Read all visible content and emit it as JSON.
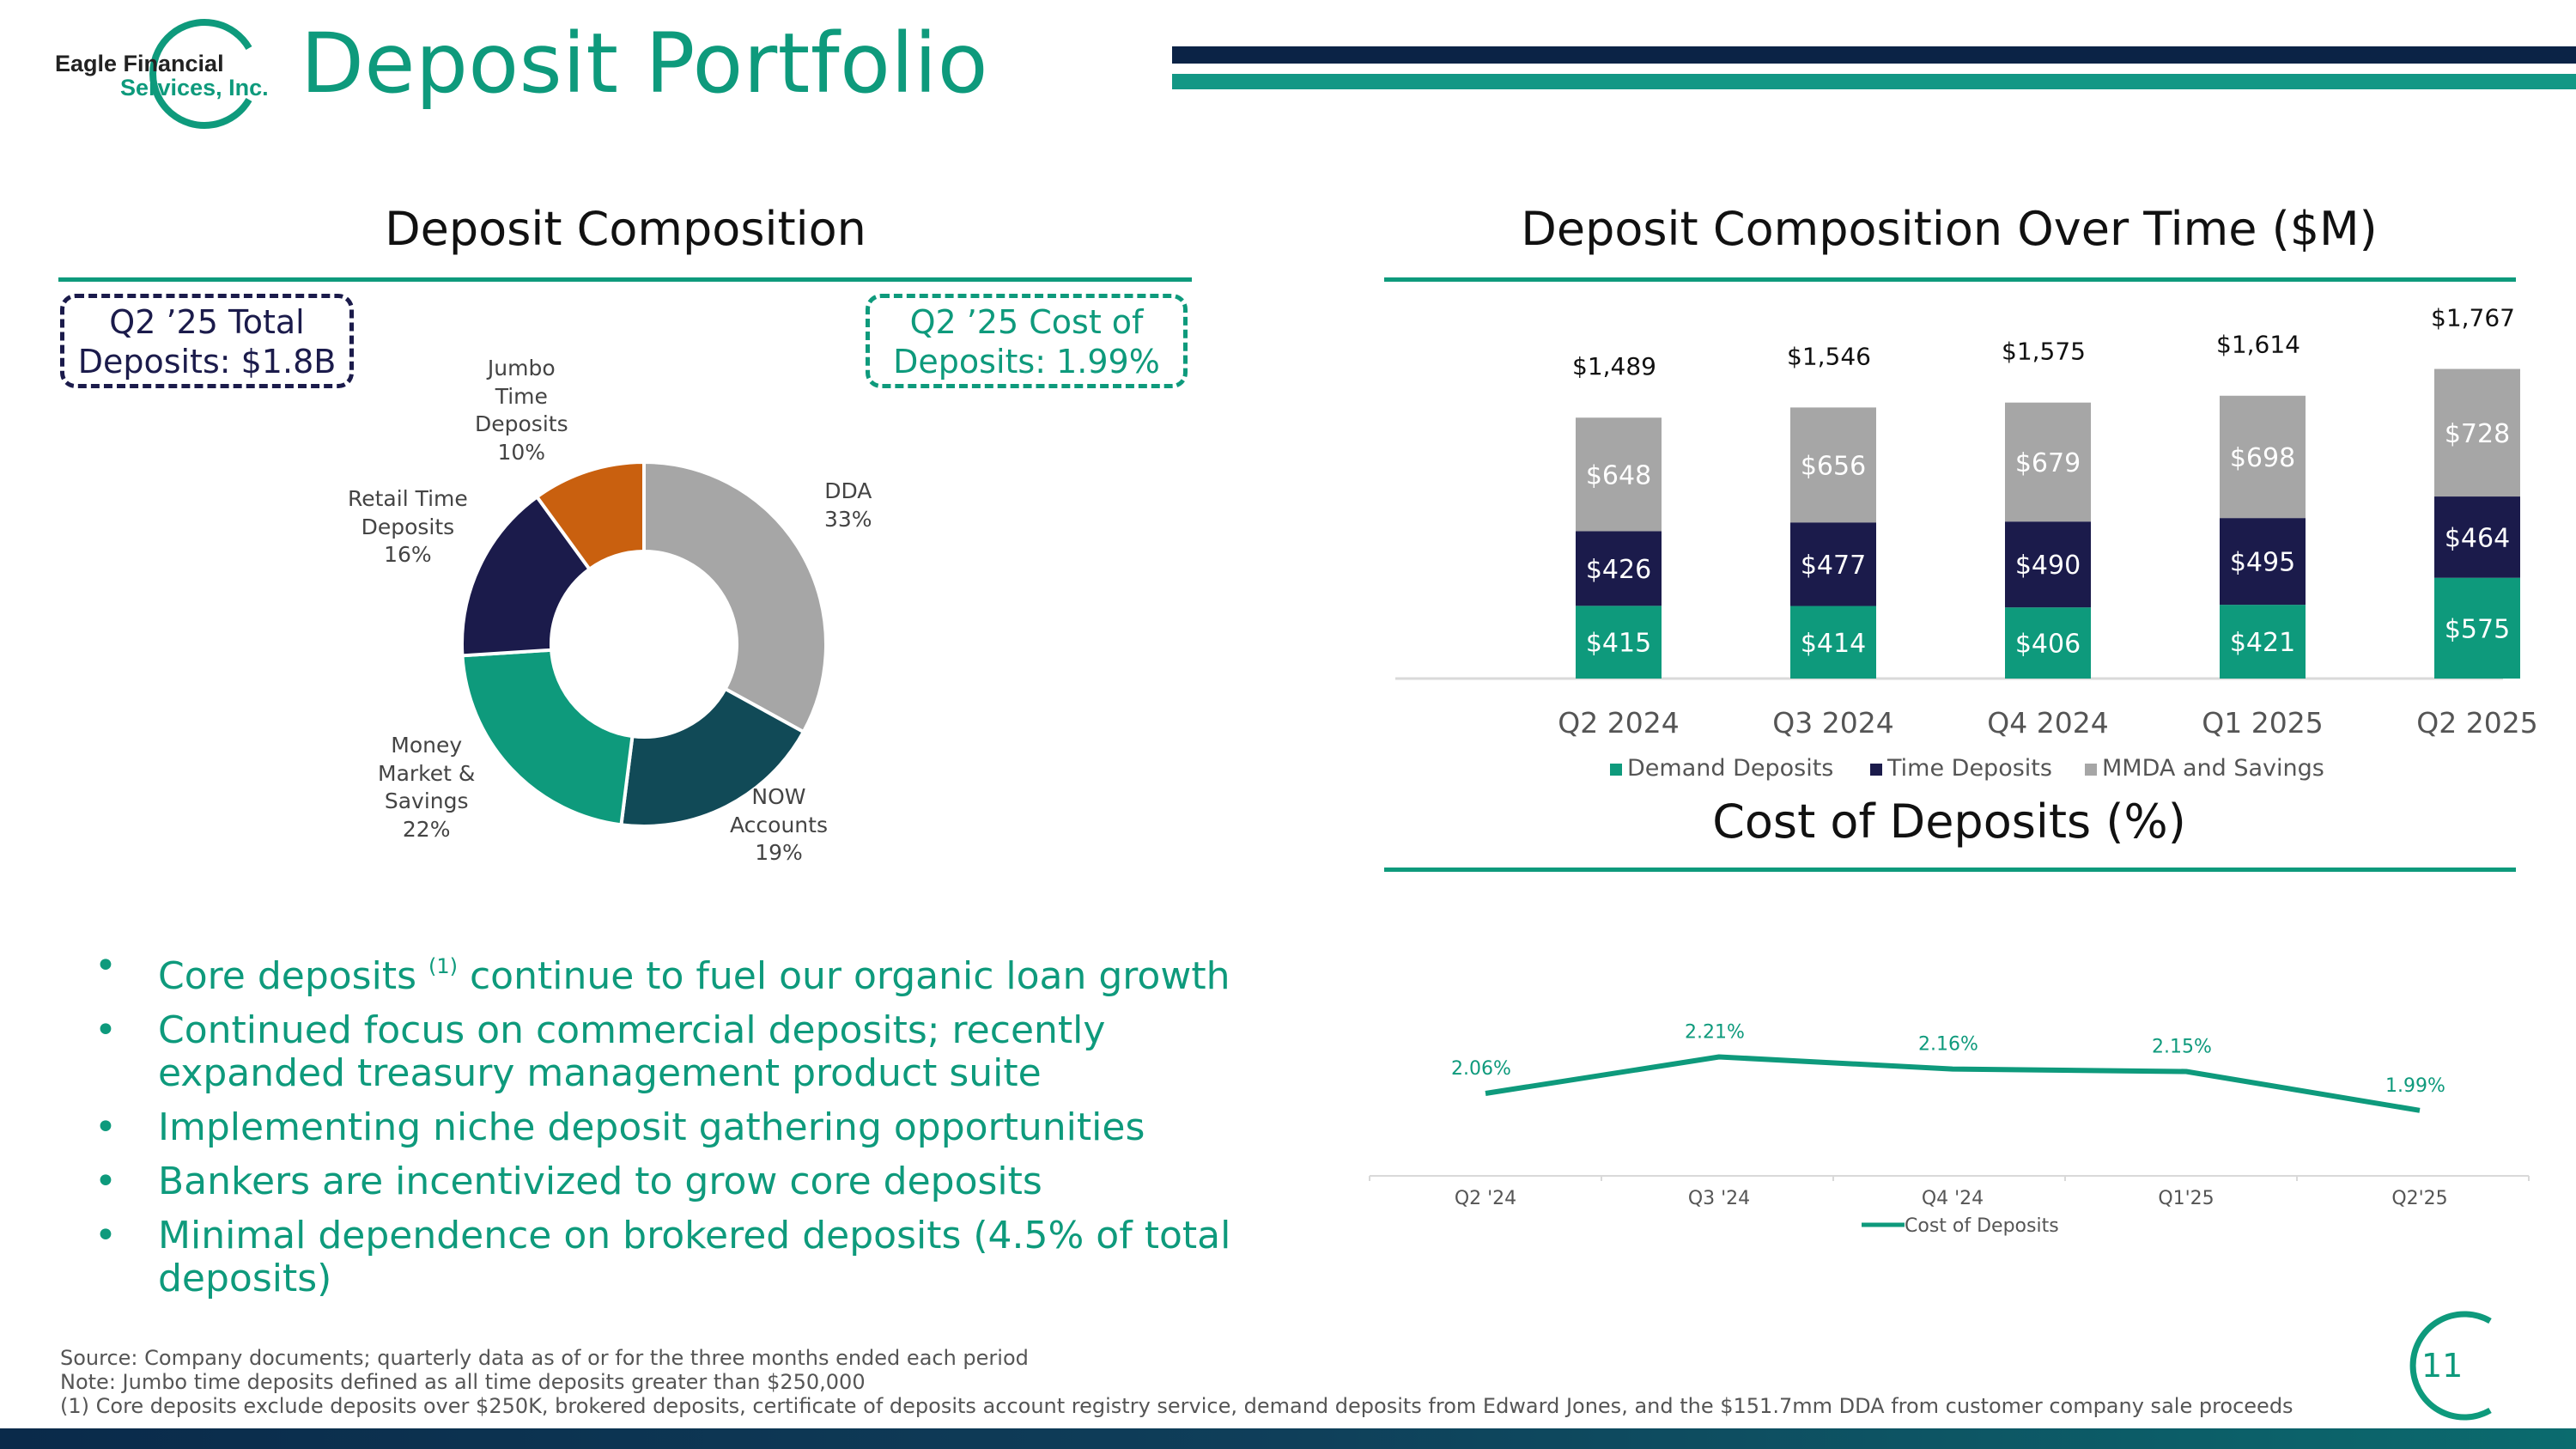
{
  "header": {
    "logo_line1": "Eagle Financial",
    "logo_line2": "Services, Inc.",
    "title": "Deposit Portfolio"
  },
  "colors": {
    "teal": "#0e9a7c",
    "dark_teal": "#114a57",
    "navy": "#1b1b4b",
    "gray": "#a6a6a6",
    "orange": "#c9600f",
    "header_navy": "#0b2346",
    "header_teal": "#129785"
  },
  "left": {
    "heading": "Deposit Composition",
    "callout_total_line1": "Q2 ’25 Total",
    "callout_total_line2": "Deposits: $1.8B",
    "callout_cost_line1": "Q2 ’25 Cost of",
    "callout_cost_line2": "Deposits: 1.99%"
  },
  "right_top": {
    "heading": "Deposit Composition Over Time ($M)"
  },
  "right_bottom": {
    "heading": "Cost of Deposits (%)"
  },
  "bullets": [
    {
      "pre": "Core deposits ",
      "sup": "(1)",
      "post": " continue to fuel our organic loan growth"
    },
    {
      "pre": "Continued focus on commercial deposits; recently expanded treasury management product suite",
      "sup": "",
      "post": ""
    },
    {
      "pre": "Implementing niche deposit gathering opportunities",
      "sup": "",
      "post": ""
    },
    {
      "pre": "Bankers are incentivized to grow core deposits",
      "sup": "",
      "post": ""
    },
    {
      "pre": "Minimal dependence on brokered deposits (4.5% of total deposits)",
      "sup": "",
      "post": ""
    }
  ],
  "notes": {
    "source": "Source: Company documents; quarterly data as of or for the three months ended each period",
    "note": "Note: Jumbo time deposits defined as all time deposits greater than $250,000",
    "footnote": "(1)   Core deposits exclude deposits over $250K, brokered deposits, certificate of deposits account registry service, demand deposits from Edward Jones, and the $151.7mm DDA from customer company sale proceeds"
  },
  "page_number": "11",
  "chart_data": [
    {
      "type": "pie",
      "title": "Deposit Composition",
      "donut": true,
      "slices": [
        {
          "label_lines": [
            "DDA",
            "33%"
          ],
          "value": 33,
          "color": "#a6a6a6"
        },
        {
          "label_lines": [
            "NOW",
            "Accounts",
            "19%"
          ],
          "value": 19,
          "color": "#114a57"
        },
        {
          "label_lines": [
            "Money",
            "Market &",
            "Savings",
            "22%"
          ],
          "value": 22,
          "color": "#0e9a7c"
        },
        {
          "label_lines": [
            "Retail Time",
            "Deposits",
            "16%"
          ],
          "value": 16,
          "color": "#1b1b4b"
        },
        {
          "label_lines": [
            "Jumbo",
            "Time",
            "Deposits",
            "10%"
          ],
          "value": 10,
          "color": "#c9600f"
        }
      ]
    },
    {
      "type": "bar",
      "stacked": true,
      "title": "Deposit Composition Over Time ($M)",
      "categories": [
        "Q2 2024",
        "Q3 2024",
        "Q4 2024",
        "Q1 2025",
        "Q2 2025"
      ],
      "series": [
        {
          "name": "Demand Deposits",
          "values": [
            415,
            414,
            406,
            421,
            575
          ],
          "labels": [
            "$415",
            "$414",
            "$406",
            "$421",
            "$575"
          ],
          "color": "#0e9a7c"
        },
        {
          "name": "Time Deposits",
          "values": [
            426,
            477,
            490,
            495,
            464
          ],
          "labels": [
            "$426",
            "$477",
            "$490",
            "$495",
            "$464"
          ],
          "color": "#1b1b4b"
        },
        {
          "name": "MMDA and Savings",
          "values": [
            648,
            656,
            679,
            698,
            728
          ],
          "labels": [
            "$648",
            "$656",
            "$679",
            "$698",
            "$728"
          ],
          "color": "#a6a6a6"
        }
      ],
      "totals": [
        "$1,489",
        "$1,546",
        "$1,575",
        "$1,614",
        "$1,767"
      ],
      "legend_position": "bottom"
    },
    {
      "type": "line",
      "title": "Cost of Deposits (%)",
      "categories": [
        "Q2 '24",
        "Q3 '24",
        "Q4 '24",
        "Q1'25",
        "Q2'25"
      ],
      "series": [
        {
          "name": "Cost of Deposits",
          "values": [
            2.06,
            2.21,
            2.16,
            2.15,
            1.99
          ],
          "labels": [
            "2.06%",
            "2.21%",
            "2.16%",
            "2.15%",
            "1.99%"
          ],
          "color": "#0e9a7c"
        }
      ],
      "ylim": [
        1.4,
        2.6
      ],
      "legend_position": "bottom"
    }
  ]
}
